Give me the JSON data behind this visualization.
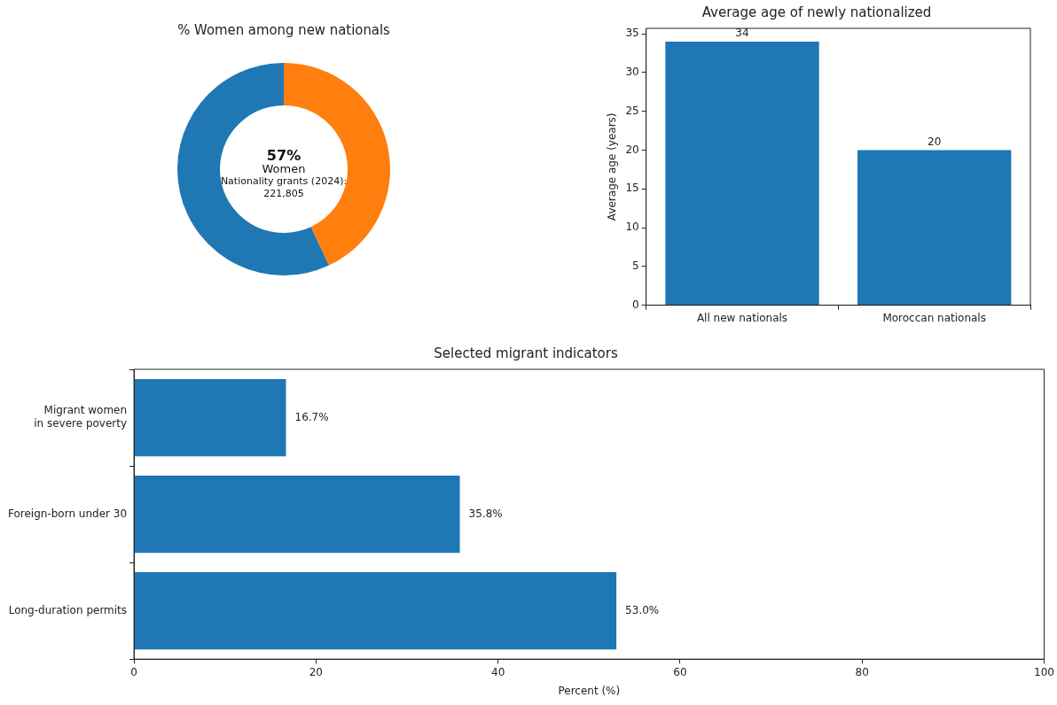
{
  "chart_data": [
    {
      "type": "donut",
      "title": "% Women among new nationals",
      "categories": [
        "Women",
        null
      ],
      "values": [
        57,
        43
      ],
      "colors": [
        "#1f77b4",
        "#ff7f0e"
      ],
      "value_labels": [
        "57%",
        null
      ],
      "annotations": [
        "Nationality grants (2024):\n221,805"
      ],
      "legend": false
    },
    {
      "type": "bar",
      "title": "Average age of newly nationalized",
      "ylabel": "Average age (years)",
      "categories": [
        "All new nationals",
        "Moroccan nationals"
      ],
      "values": [
        34,
        20
      ],
      "color": "#1f77b4",
      "ylim": [
        0,
        35.7
      ],
      "yticks": [
        0,
        5,
        10,
        15,
        20,
        25,
        30,
        35
      ],
      "data_labels": true,
      "grid": false,
      "legend": false
    },
    {
      "type": "bar",
      "orientation": "horizontal",
      "title": "Selected migrant indicators",
      "xlabel": "Percent (%)",
      "categories": [
        "Migrant women\nin severe poverty",
        "Foreign-born under 30",
        "Long-duration permits"
      ],
      "values": [
        16.7,
        35.8,
        53.0
      ],
      "value_labels": [
        "16.7%",
        "35.8%",
        "53.0%"
      ],
      "color": "#1f77b4",
      "xlim": [
        0,
        100
      ],
      "xticks": [
        0,
        20,
        40,
        60,
        80,
        100
      ],
      "grid": false,
      "legend": false
    }
  ]
}
